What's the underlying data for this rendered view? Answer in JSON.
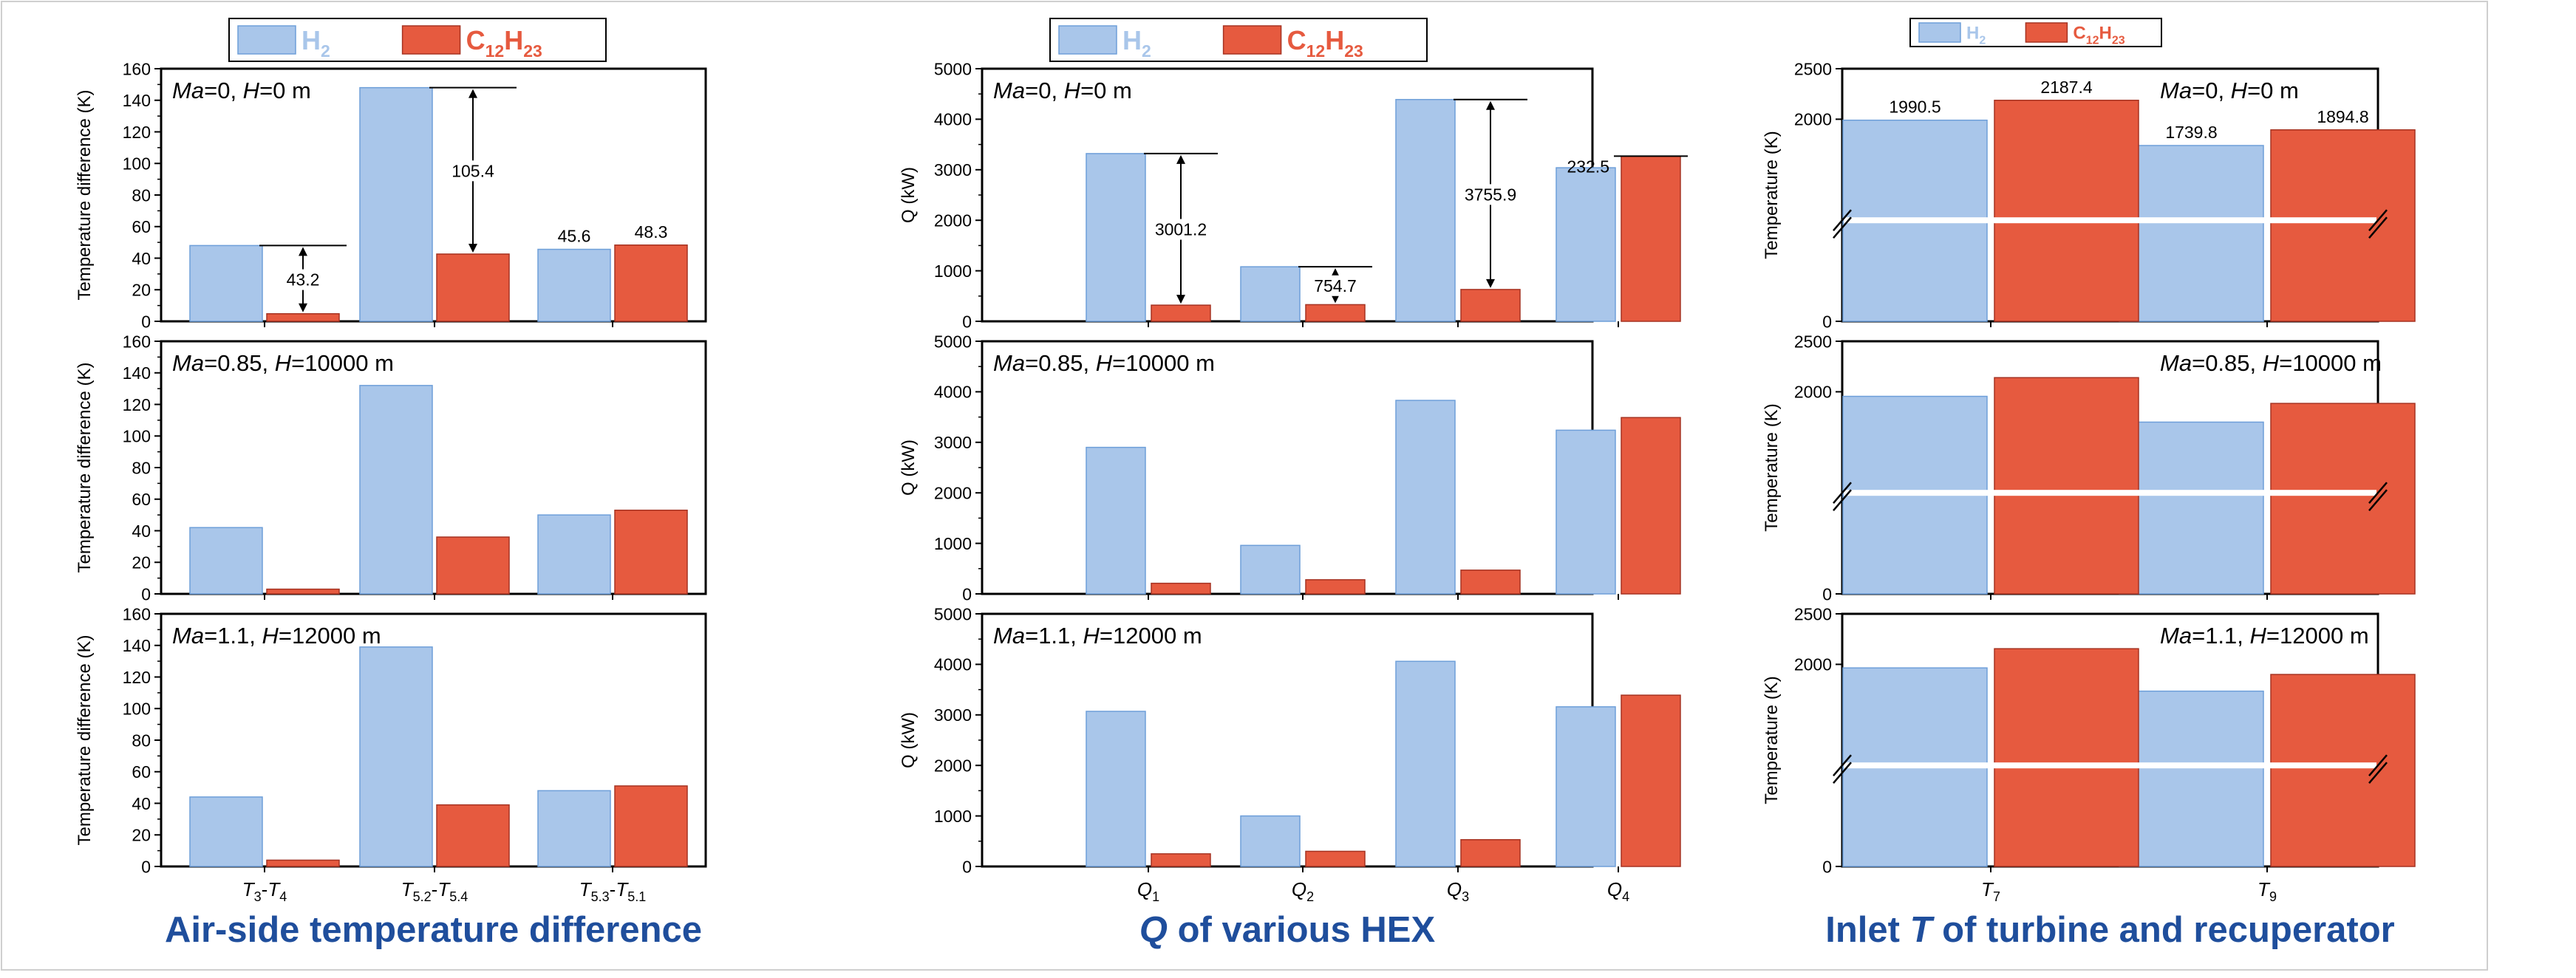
{
  "colors": {
    "h2": "#a9c6ea",
    "h2_stroke": "#6e9fd9",
    "c12": "#e65a3f",
    "c12_stroke": "#a63322",
    "title_blue": "#1f4e9c",
    "axis": "#000000"
  },
  "legend": {
    "h2": {
      "base": "H",
      "sub": "2"
    },
    "c12": {
      "parts": [
        {
          "t": "C",
          "sub": false
        },
        {
          "t": "12",
          "sub": true
        },
        {
          "t": "H",
          "sub": false
        },
        {
          "t": "23",
          "sub": true
        }
      ]
    }
  },
  "columns": [
    {
      "id": "temp",
      "title": {
        "parts": [
          {
            "t": "Air-side temperature difference",
            "italic": false
          }
        ]
      },
      "ylabel": "Temperature difference (K)",
      "ylim": [
        0,
        160
      ],
      "yticks": [
        0,
        20,
        40,
        60,
        80,
        100,
        120,
        140,
        160
      ],
      "categories": [
        [
          {
            "t": "T",
            "i": true
          },
          {
            "t": "3",
            "sub": true
          },
          {
            "t": "-",
            "i": false
          },
          {
            "t": "T",
            "i": true
          },
          {
            "t": "4",
            "sub": true
          }
        ],
        [
          {
            "t": "T",
            "i": true
          },
          {
            "t": "5.2",
            "sub": true
          },
          {
            "t": "-",
            "i": false
          },
          {
            "t": "T",
            "i": true
          },
          {
            "t": "5.4",
            "sub": true
          }
        ],
        [
          {
            "t": "T",
            "i": true
          },
          {
            "t": "5.3",
            "sub": true
          },
          {
            "t": "-",
            "i": false
          },
          {
            "t": "T",
            "i": true
          },
          {
            "t": "5.1",
            "sub": true
          }
        ]
      ],
      "panels": [
        {
          "condition": {
            "ma": "0",
            "h": "0 m"
          },
          "series": [
            {
              "key": "h2",
              "values": [
                48,
                148,
                45.6
              ]
            },
            {
              "key": "c12",
              "values": [
                4.8,
                42.6,
                48.3
              ]
            }
          ],
          "value_labels": [
            {
              "cat": 2,
              "series": "h2",
              "text": "45.6"
            },
            {
              "cat": 2,
              "series": "c12",
              "text": "48.3"
            }
          ],
          "difference_annotations": [
            {
              "cat": 0,
              "text": "43.2"
            },
            {
              "cat": 1,
              "text": "105.4"
            }
          ]
        },
        {
          "condition": {
            "ma": "0.85",
            "h": "10000 m"
          },
          "series": [
            {
              "key": "h2",
              "values": [
                42,
                132,
                50
              ]
            },
            {
              "key": "c12",
              "values": [
                3,
                36,
                53
              ]
            }
          ],
          "value_labels": [],
          "difference_annotations": []
        },
        {
          "condition": {
            "ma": "1.1",
            "h": "12000 m"
          },
          "series": [
            {
              "key": "h2",
              "values": [
                44,
                139,
                48
              ]
            },
            {
              "key": "c12",
              "values": [
                4,
                39,
                51
              ]
            }
          ],
          "value_labels": [],
          "difference_annotations": []
        }
      ]
    },
    {
      "id": "heat",
      "title": {
        "parts": [
          {
            "t": "Q",
            "italic": true
          },
          {
            "t": " of various HEX",
            "italic": false
          }
        ]
      },
      "ylabel": "Q (kW)",
      "ylim": [
        0,
        5000
      ],
      "yticks": [
        0,
        1000,
        2000,
        3000,
        4000,
        5000
      ],
      "categories": [
        [
          {
            "t": "Q",
            "i": true
          },
          {
            "t": "1",
            "sub": true
          }
        ],
        [
          {
            "t": "Q",
            "i": true
          },
          {
            "t": "2",
            "sub": true
          }
        ],
        [
          {
            "t": "Q",
            "i": true
          },
          {
            "t": "3",
            "sub": true
          }
        ],
        [
          {
            "t": "Q",
            "i": true
          },
          {
            "t": "4",
            "sub": true
          }
        ]
      ],
      "panels": [
        {
          "condition": {
            "ma": "0",
            "h": "0 m"
          },
          "series": [
            {
              "key": "h2",
              "values": [
                3320,
                1080,
                4390,
                3040
              ]
            },
            {
              "key": "c12",
              "values": [
                320,
                330,
                630,
                3270
              ]
            }
          ],
          "value_labels": [],
          "difference_annotations": [
            {
              "cat": 0,
              "text": "3001.2"
            },
            {
              "cat": 1,
              "text": "754.7"
            },
            {
              "cat": 2,
              "text": "3755.9"
            },
            {
              "cat": 3,
              "text": "232.5"
            }
          ]
        },
        {
          "condition": {
            "ma": "0.85",
            "h": "10000 m"
          },
          "series": [
            {
              "key": "h2",
              "values": [
                2900,
                960,
                3830,
                3240
              ]
            },
            {
              "key": "c12",
              "values": [
                210,
                280,
                470,
                3490
              ]
            }
          ],
          "value_labels": [],
          "difference_annotations": []
        },
        {
          "condition": {
            "ma": "1.1",
            "h": "12000 m"
          },
          "series": [
            {
              "key": "h2",
              "values": [
                3070,
                1000,
                4060,
                3160
              ]
            },
            {
              "key": "c12",
              "values": [
                250,
                300,
                530,
                3390
              ]
            }
          ],
          "value_labels": [],
          "difference_annotations": []
        }
      ]
    },
    {
      "id": "inlet",
      "title": {
        "parts": [
          {
            "t": "Inlet ",
            "italic": false
          },
          {
            "t": "T",
            "italic": true
          },
          {
            "t": " of turbine and recuperator",
            "italic": false
          }
        ]
      },
      "ylabel": "Temperature (K)",
      "ylim": [
        0,
        2500
      ],
      "axis_break": {
        "at": 1000,
        "min_shown": 1500
      },
      "yticks": [
        0,
        2000,
        2500
      ],
      "categories": [
        [
          {
            "t": "T",
            "i": true
          },
          {
            "t": "7",
            "sub": true
          }
        ],
        [
          {
            "t": "T",
            "i": true
          },
          {
            "t": "9",
            "sub": true
          }
        ]
      ],
      "panels": [
        {
          "condition": {
            "ma": "0",
            "h": "0 m"
          },
          "series": [
            {
              "key": "h2",
              "values": [
                1990.5,
                1739.8
              ]
            },
            {
              "key": "c12",
              "values": [
                2187.4,
                1894.8
              ]
            }
          ],
          "value_labels": [
            {
              "cat": 0,
              "series": "h2",
              "text": "1990.5"
            },
            {
              "cat": 0,
              "series": "c12",
              "text": "2187.4"
            },
            {
              "cat": 1,
              "series": "h2",
              "text": "1739.8"
            },
            {
              "cat": 1,
              "series": "c12",
              "text": "1894.8"
            }
          ],
          "difference_annotations": []
        },
        {
          "condition": {
            "ma": "0.85",
            "h": "10000 m"
          },
          "series": [
            {
              "key": "h2",
              "values": [
                1955,
                1700
              ]
            },
            {
              "key": "c12",
              "values": [
                2140,
                1885
              ]
            }
          ],
          "value_labels": [],
          "difference_annotations": []
        },
        {
          "condition": {
            "ma": "1.1",
            "h": "12000 m"
          },
          "series": [
            {
              "key": "h2",
              "values": [
                1965,
                1735
              ]
            },
            {
              "key": "c12",
              "values": [
                2155,
                1900
              ]
            }
          ],
          "value_labels": [],
          "difference_annotations": []
        }
      ]
    }
  ],
  "chart_data": [
    {
      "type": "bar",
      "title": "Air-side temperature difference",
      "ylabel": "Temperature difference (K)",
      "ylim": [
        0,
        160
      ],
      "categories": [
        "T3-T4",
        "T5.2-T5.4",
        "T5.3-T5.1"
      ],
      "panel": "Ma=0, H=0 m",
      "series": [
        {
          "name": "H2",
          "values": [
            48,
            148,
            45.6
          ]
        },
        {
          "name": "C12H23",
          "values": [
            4.8,
            42.6,
            48.3
          ]
        }
      ],
      "annotations": [
        "43.2",
        "105.4"
      ]
    },
    {
      "type": "bar",
      "title": "Air-side temperature difference",
      "ylabel": "Temperature difference (K)",
      "ylim": [
        0,
        160
      ],
      "categories": [
        "T3-T4",
        "T5.2-T5.4",
        "T5.3-T5.1"
      ],
      "panel": "Ma=0.85, H=10000 m",
      "series": [
        {
          "name": "H2",
          "values": [
            42,
            132,
            50
          ]
        },
        {
          "name": "C12H23",
          "values": [
            3,
            36,
            53
          ]
        }
      ]
    },
    {
      "type": "bar",
      "title": "Air-side temperature difference",
      "ylabel": "Temperature difference (K)",
      "ylim": [
        0,
        160
      ],
      "categories": [
        "T3-T4",
        "T5.2-T5.4",
        "T5.3-T5.1"
      ],
      "panel": "Ma=1.1, H=12000 m",
      "series": [
        {
          "name": "H2",
          "values": [
            44,
            139,
            48
          ]
        },
        {
          "name": "C12H23",
          "values": [
            4,
            39,
            51
          ]
        }
      ]
    },
    {
      "type": "bar",
      "title": "Q of various HEX",
      "ylabel": "Q (kW)",
      "ylim": [
        0,
        5000
      ],
      "categories": [
        "Q1",
        "Q2",
        "Q3",
        "Q4"
      ],
      "panel": "Ma=0, H=0 m",
      "series": [
        {
          "name": "H2",
          "values": [
            3320,
            1080,
            4390,
            3040
          ]
        },
        {
          "name": "C12H23",
          "values": [
            320,
            330,
            630,
            3270
          ]
        }
      ],
      "annotations": [
        "3001.2",
        "754.7",
        "3755.9",
        "232.5"
      ]
    },
    {
      "type": "bar",
      "title": "Q of various HEX",
      "ylabel": "Q (kW)",
      "ylim": [
        0,
        5000
      ],
      "categories": [
        "Q1",
        "Q2",
        "Q3",
        "Q4"
      ],
      "panel": "Ma=0.85, H=10000 m",
      "series": [
        {
          "name": "H2",
          "values": [
            2900,
            960,
            3830,
            3240
          ]
        },
        {
          "name": "C12H23",
          "values": [
            210,
            280,
            470,
            3490
          ]
        }
      ]
    },
    {
      "type": "bar",
      "title": "Q of various HEX",
      "ylabel": "Q (kW)",
      "ylim": [
        0,
        5000
      ],
      "categories": [
        "Q1",
        "Q2",
        "Q3",
        "Q4"
      ],
      "panel": "Ma=1.1, H=12000 m",
      "series": [
        {
          "name": "H2",
          "values": [
            3070,
            1000,
            4060,
            3160
          ]
        },
        {
          "name": "C12H23",
          "values": [
            250,
            300,
            530,
            3390
          ]
        }
      ]
    },
    {
      "type": "bar",
      "title": "Inlet T of turbine and recuperator",
      "ylabel": "Temperature (K)",
      "ylim": [
        0,
        2500
      ],
      "axis_break": [
        1000,
        1500
      ],
      "categories": [
        "T7",
        "T9"
      ],
      "panel": "Ma=0, H=0 m",
      "series": [
        {
          "name": "H2",
          "values": [
            1990.5,
            1739.8
          ]
        },
        {
          "name": "C12H23",
          "values": [
            2187.4,
            1894.8
          ]
        }
      ]
    },
    {
      "type": "bar",
      "title": "Inlet T of turbine and recuperator",
      "ylabel": "Temperature (K)",
      "ylim": [
        0,
        2500
      ],
      "axis_break": [
        1000,
        1500
      ],
      "categories": [
        "T7",
        "T9"
      ],
      "panel": "Ma=0.85, H=10000 m",
      "series": [
        {
          "name": "H2",
          "values": [
            1955,
            1700
          ]
        },
        {
          "name": "C12H23",
          "values": [
            2140,
            1885
          ]
        }
      ]
    },
    {
      "type": "bar",
      "title": "Inlet T of turbine and recuperator",
      "ylabel": "Temperature (K)",
      "ylim": [
        0,
        2500
      ],
      "axis_break": [
        1000,
        1500
      ],
      "categories": [
        "T7",
        "T9"
      ],
      "panel": "Ma=1.1, H=12000 m",
      "series": [
        {
          "name": "H2",
          "values": [
            1965,
            1735
          ]
        },
        {
          "name": "C12H23",
          "values": [
            2155,
            1900
          ]
        }
      ]
    }
  ]
}
